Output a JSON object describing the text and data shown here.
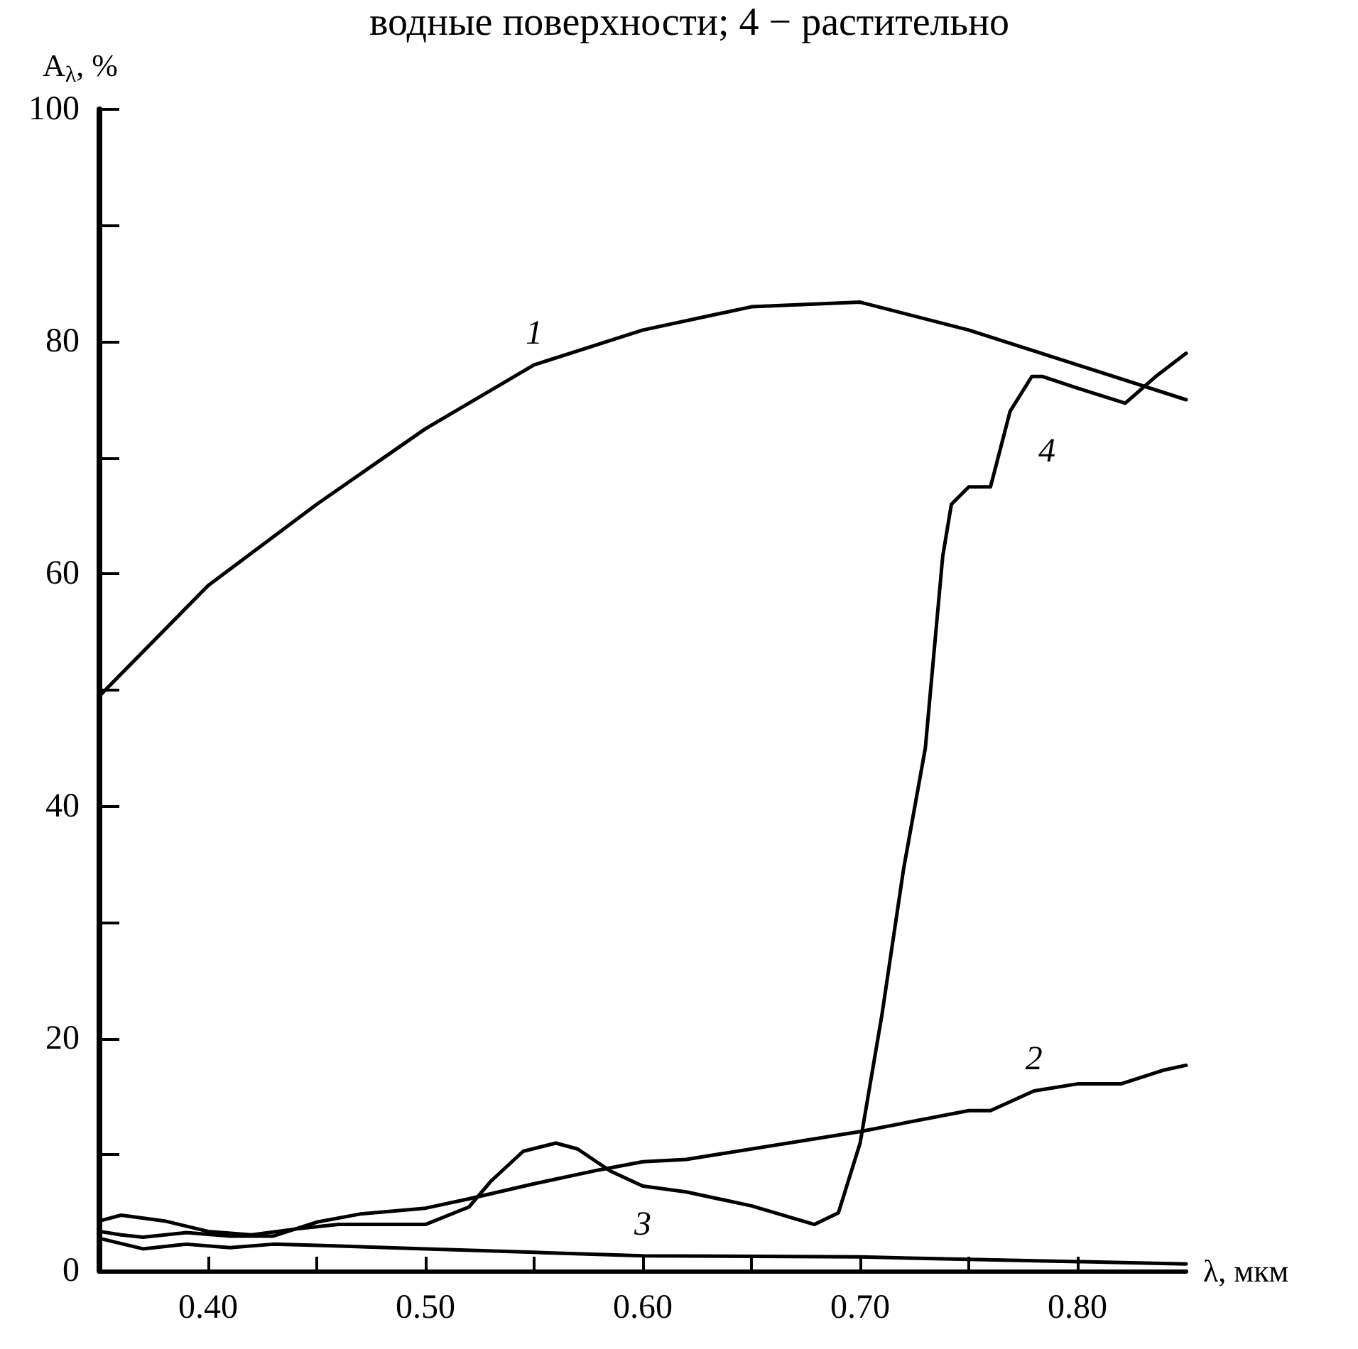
{
  "chart_data": {
    "type": "line",
    "xlabel": "λ, мкм",
    "ylabel": "A$_{λ}$, %",
    "xlim": [
      0.35,
      0.85
    ],
    "ylim": [
      0,
      100
    ],
    "xticks": [
      {
        "value": 0.4,
        "label": "0.40"
      },
      {
        "value": 0.45,
        "label": null
      },
      {
        "value": 0.5,
        "label": "0.50"
      },
      {
        "value": 0.55,
        "label": null
      },
      {
        "value": 0.6,
        "label": "0.60"
      },
      {
        "value": 0.65,
        "label": null
      },
      {
        "value": 0.7,
        "label": "0.70"
      },
      {
        "value": 0.75,
        "label": null
      },
      {
        "value": 0.8,
        "label": "0.80"
      }
    ],
    "yticks": [
      0,
      {
        "value": 10,
        "label": null
      },
      20,
      {
        "value": 30,
        "label": null
      },
      40,
      {
        "value": 50,
        "label": null
      },
      60,
      {
        "value": 70,
        "label": null
      },
      80,
      {
        "value": 90,
        "label": null
      },
      100
    ],
    "grid": false,
    "legend": false,
    "marker": "none",
    "line_style": "solid",
    "series": [
      {
        "name": "1",
        "color": "#000000",
        "x": [
          0.35,
          0.4,
          0.45,
          0.5,
          0.55,
          0.6,
          0.65,
          0.7,
          0.75,
          0.8,
          0.85
        ],
        "values": [
          49.5,
          59,
          66,
          72.5,
          78,
          81,
          83,
          83.4,
          81,
          78,
          75
        ]
      },
      {
        "name": "2",
        "color": "#000000",
        "x": [
          0.35,
          0.36,
          0.37,
          0.39,
          0.41,
          0.43,
          0.45,
          0.47,
          0.5,
          0.52,
          0.55,
          0.58,
          0.6,
          0.62,
          0.7,
          0.75,
          0.76,
          0.78,
          0.8,
          0.82,
          0.84,
          0.85
        ],
        "values": [
          3.4,
          3.1,
          2.9,
          3.3,
          3,
          3,
          4.2,
          4.9,
          5.4,
          6.2,
          7.5,
          8.7,
          9.4,
          9.6,
          12,
          13.8,
          13.8,
          15.5,
          16.1,
          16.1,
          17.3,
          17.7
        ]
      },
      {
        "name": "3",
        "color": "#000000",
        "x": [
          0.35,
          0.37,
          0.39,
          0.41,
          0.43,
          0.45,
          0.5,
          0.55,
          0.6,
          0.7,
          0.8,
          0.85
        ],
        "values": [
          2.8,
          1.9,
          2.3,
          2,
          2.3,
          2.2,
          1.9,
          1.6,
          1.3,
          1.2,
          0.8,
          0.6
        ]
      },
      {
        "name": "4",
        "color": "#000000",
        "x": [
          0.35,
          0.36,
          0.38,
          0.4,
          0.42,
          0.44,
          0.46,
          0.5,
          0.52,
          0.53,
          0.545,
          0.56,
          0.57,
          0.585,
          0.6,
          0.62,
          0.65,
          0.679,
          0.69,
          0.7,
          0.71,
          0.72,
          0.73,
          0.738,
          0.742,
          0.75,
          0.76,
          0.769,
          0.779,
          0.784,
          0.8,
          0.822,
          0.836,
          0.85
        ],
        "values": [
          4.3,
          4.8,
          4.3,
          3.4,
          3.1,
          3.6,
          4,
          4,
          5.5,
          7.7,
          10.3,
          11,
          10.5,
          8.6,
          7.3,
          6.8,
          5.6,
          4,
          5,
          11,
          22,
          34.6,
          45,
          61.5,
          66,
          67.5,
          67.5,
          74,
          77,
          77,
          76,
          74.7,
          77,
          79
        ]
      }
    ],
    "annotations": [
      "водные поверхности; 4 − растительно"
    ]
  }
}
